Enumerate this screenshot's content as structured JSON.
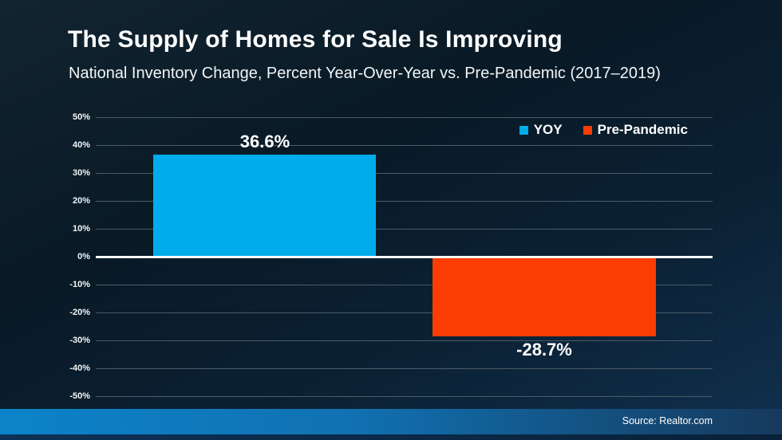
{
  "chart_data": {
    "type": "bar",
    "title": "The Supply of Homes for Sale Is Improving",
    "subtitle": "National Inventory Change, Percent Year-Over-Year vs. Pre-Pandemic (2017–2019)",
    "source": "Source: Realtor.com",
    "categories": [
      "YOY",
      "Pre-Pandemic"
    ],
    "series": [
      {
        "name": "YOY",
        "value": 36.6,
        "label": "36.6%",
        "color": "#00acec"
      },
      {
        "name": "Pre-Pandemic",
        "value": -28.7,
        "label": "-28.7%",
        "color": "#fb3c03"
      }
    ],
    "ylim": [
      -50,
      50
    ],
    "yticks": [
      50,
      40,
      30,
      20,
      10,
      0,
      -10,
      -20,
      -30,
      -40,
      -50
    ],
    "ytick_labels": [
      "50%",
      "40%",
      "30%",
      "20%",
      "10%",
      "0%",
      "-10%",
      "-20%",
      "-30%",
      "-40%",
      "-50%"
    ],
    "grid": true,
    "zero_line": true,
    "legend_position": "top-right"
  },
  "colors": {
    "background_top": "#122430",
    "background_bottom": "#113150",
    "gridline": "#4d5a66",
    "zero_line": "#f7fafc",
    "text": "#ffffff",
    "footer_gradient_left": "#0c83c9",
    "footer_gradient_right": "#16395c"
  }
}
